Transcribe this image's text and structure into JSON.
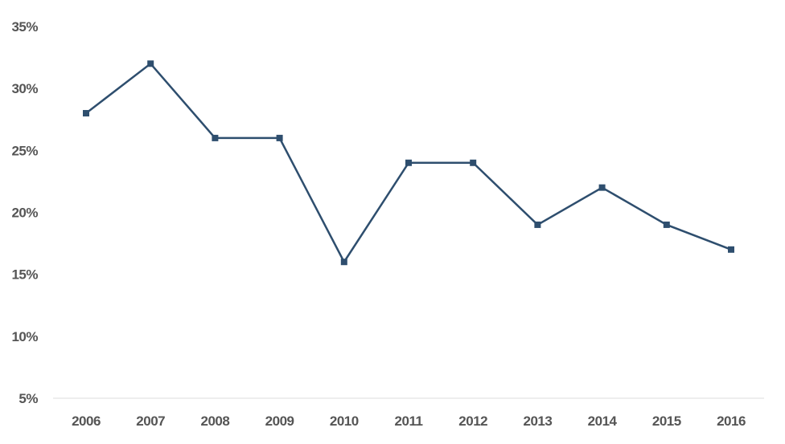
{
  "chart_data": {
    "type": "line",
    "title": "",
    "xlabel": "",
    "ylabel": "",
    "categories": [
      "2006",
      "2007",
      "2008",
      "2009",
      "2010",
      "2011",
      "2012",
      "2013",
      "2014",
      "2015",
      "2016"
    ],
    "series": [
      {
        "values": [
          28,
          32,
          26,
          26,
          16,
          24,
          24,
          19,
          22,
          19,
          17
        ],
        "color": "#2e4e6e",
        "marker": "square"
      }
    ],
    "ylim": [
      5,
      35
    ],
    "yticks": [
      5,
      10,
      15,
      20,
      25,
      30,
      35
    ],
    "ytick_labels": [
      "5%",
      "10%",
      "15%",
      "20%",
      "25%",
      "30%",
      "35%"
    ],
    "grid": false,
    "legend": "none"
  }
}
